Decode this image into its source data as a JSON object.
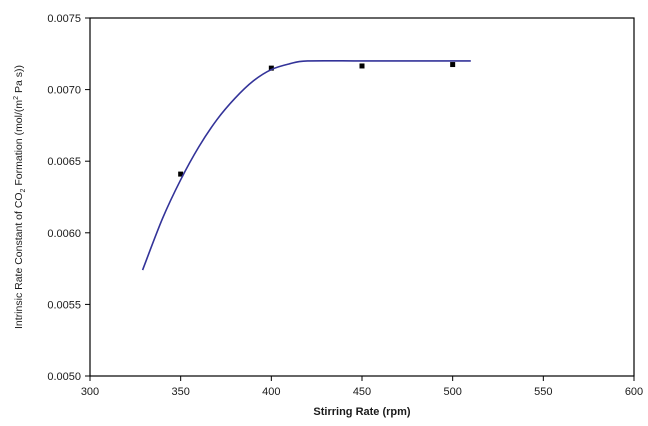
{
  "chart_data": {
    "type": "scatter",
    "title": "",
    "xlabel": "Stirring Rate (rpm)",
    "ylabel": {
      "before": "Intrinsic Rate Constant of CO",
      "sub": "2",
      "middle": " Formation (mol/(m",
      "sup": "2",
      "after": " Pa s))"
    },
    "xlim": [
      300,
      600
    ],
    "ylim": [
      0.005,
      0.0075
    ],
    "xticks": [
      300,
      350,
      400,
      450,
      500,
      550,
      600
    ],
    "yticks": [
      0.005,
      0.0055,
      0.006,
      0.0065,
      0.007,
      0.0075
    ],
    "xtick_labels": [
      "300",
      "350",
      "400",
      "450",
      "500",
      "550",
      "600"
    ],
    "ytick_labels": [
      "0.0050",
      "0.0055",
      "0.0060",
      "0.0065",
      "0.0070",
      "0.0075"
    ],
    "grid": false,
    "legend": "none",
    "series": [
      {
        "kind": "points",
        "color": "#000000",
        "x": [
          350,
          400,
          450,
          500
        ],
        "y": [
          0.00641,
          0.00715,
          0.007165,
          0.007175
        ]
      },
      {
        "kind": "fitted-curve",
        "color": "#333399",
        "x": [
          329,
          340,
          350,
          360,
          370,
          380,
          390,
          400,
          410,
          420,
          450,
          480,
          510
        ],
        "y": [
          0.00574,
          0.0061,
          0.00637,
          0.0066,
          0.00679,
          0.00694,
          0.00706,
          0.00714,
          0.00718,
          0.0072,
          0.0072,
          0.0072,
          0.0072
        ]
      }
    ]
  }
}
